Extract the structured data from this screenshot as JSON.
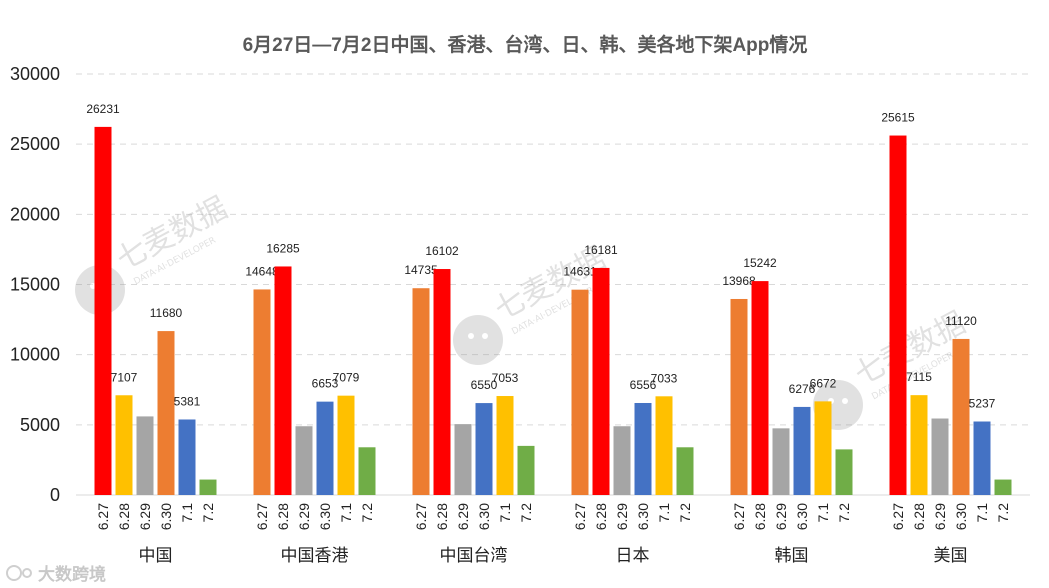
{
  "chart_data": {
    "type": "bar",
    "title": "6月27日—7月2日中国、香港、台湾、日、韩、美各地下架App情况",
    "xlabel": "",
    "ylabel": "",
    "ylim": [
      0,
      30000
    ],
    "yticks": [
      "0",
      "5000",
      "10000",
      "15000",
      "20000",
      "25000",
      "30000"
    ],
    "grid": true,
    "sub_categories": [
      "6.27",
      "6.28",
      "6.29",
      "6.30",
      "7.1",
      "7.2"
    ],
    "groups": [
      {
        "name": "中国",
        "values": [
          26231,
          7107,
          5600,
          11680,
          5381,
          1100
        ],
        "colors": [
          "#ff0000",
          "#ffc000",
          "#a5a5a5",
          "#ed7d31",
          "#4472c4",
          "#70ad47"
        ],
        "labels": [
          "26231",
          "7107",
          "",
          "11680",
          "5381",
          ""
        ]
      },
      {
        "name": "中国香港",
        "values": [
          14648,
          16285,
          4900,
          6653,
          7079,
          3400
        ],
        "colors": [
          "#ed7d31",
          "#ff0000",
          "#a5a5a5",
          "#4472c4",
          "#ffc000",
          "#70ad47"
        ],
        "labels": [
          "14648",
          "16285",
          "",
          "6653",
          "7079",
          ""
        ]
      },
      {
        "name": "中国台湾",
        "values": [
          14735,
          16102,
          5050,
          6550,
          7053,
          3500
        ],
        "colors": [
          "#ed7d31",
          "#ff0000",
          "#a5a5a5",
          "#4472c4",
          "#ffc000",
          "#70ad47"
        ],
        "labels": [
          "14735",
          "16102",
          "",
          "6550",
          "7053",
          ""
        ]
      },
      {
        "name": "日本",
        "values": [
          14631,
          16181,
          4900,
          6556,
          7033,
          3400
        ],
        "colors": [
          "#ed7d31",
          "#ff0000",
          "#a5a5a5",
          "#4472c4",
          "#ffc000",
          "#70ad47"
        ],
        "labels": [
          "14631",
          "16181",
          "",
          "6556",
          "7033",
          ""
        ]
      },
      {
        "name": "韩国",
        "values": [
          13968,
          15242,
          4750,
          6276,
          6672,
          3250
        ],
        "colors": [
          "#ed7d31",
          "#ff0000",
          "#a5a5a5",
          "#4472c4",
          "#ffc000",
          "#70ad47"
        ],
        "labels": [
          "13968",
          "15242",
          "",
          "6276",
          "6672",
          ""
        ]
      },
      {
        "name": "美国",
        "values": [
          25615,
          7115,
          5450,
          11120,
          5237,
          1100
        ],
        "colors": [
          "#ff0000",
          "#ffc000",
          "#a5a5a5",
          "#ed7d31",
          "#4472c4",
          "#70ad47"
        ],
        "labels": [
          "25615",
          "7115",
          "",
          "11120",
          "5237",
          ""
        ]
      }
    ]
  },
  "watermark": {
    "brand": "七麦数据",
    "tagline": "DATA·AI·DEVELOPER",
    "source_logo": "大数跨境"
  }
}
